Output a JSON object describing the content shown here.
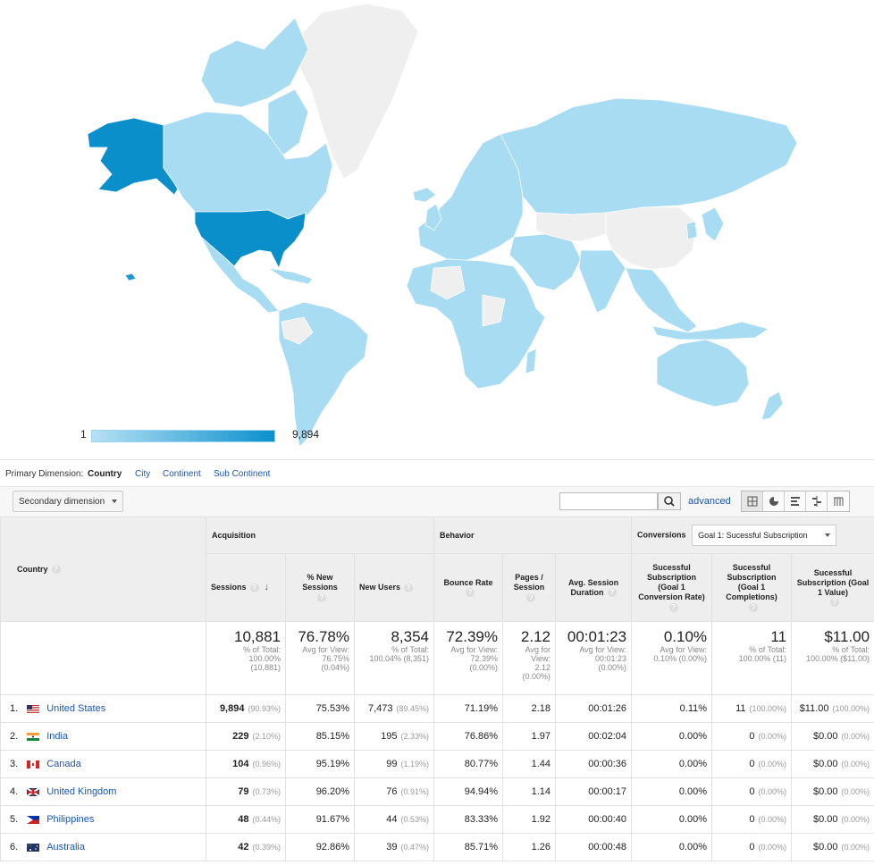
{
  "colors": {
    "light": "#a8dcf3",
    "dark": "#0b8fcb",
    "mid": "#1499d4",
    "noData": "#efefef",
    "link": "#1a56b0"
  },
  "legend": {
    "min": "1",
    "max": "9,894"
  },
  "primary_dimension": {
    "label": "Primary Dimension:",
    "options": [
      "Country",
      "City",
      "Continent",
      "Sub Continent"
    ],
    "active": "Country"
  },
  "toolbar": {
    "secondary_dimension": "Secondary dimension",
    "search_placeholder": "",
    "advanced": "advanced",
    "view_icons": [
      "table-view-icon",
      "pie-view-icon",
      "performance-view-icon",
      "comparison-view-icon",
      "pivot-view-icon"
    ]
  },
  "table": {
    "dimension_header": "Country",
    "groups": {
      "acquisition": "Acquisition",
      "behavior": "Behavior",
      "conversions": "Conversions",
      "goal_select": "Goal 1: Sucessful Subscription"
    },
    "columns": {
      "sessions": "Sessions",
      "pct_new_sessions": "% New Sessions",
      "new_users": "New Users",
      "bounce_rate": "Bounce Rate",
      "pages_session": "Pages / Session",
      "avg_duration": "Avg. Session Duration",
      "conv_rate": "Sucessful Subscription (Goal 1 Conversion Rate)",
      "completions": "Sucessful Subscription (Goal 1 Completions)",
      "value": "Sucessful Subscription (Goal 1 Value)"
    },
    "totals": {
      "sessions": {
        "value": "10,881",
        "sub": [
          "% of Total:",
          "100.00%",
          "(10,881)"
        ]
      },
      "pct_new_sessions": {
        "value": "76.78%",
        "sub": [
          "Avg for View:",
          "76.75%",
          "(0.04%)"
        ]
      },
      "new_users": {
        "value": "8,354",
        "sub": [
          "% of Total:",
          "100.04% (8,351)"
        ]
      },
      "bounce_rate": {
        "value": "72.39%",
        "sub": [
          "Avg for View:",
          "72.39%",
          "(0.00%)"
        ]
      },
      "pages_session": {
        "value": "2.12",
        "sub": [
          "Avg for",
          "View:",
          "2.12",
          "(0.00%)"
        ]
      },
      "avg_duration": {
        "value": "00:01:23",
        "sub": [
          "Avg for View:",
          "00:01:23",
          "(0.00%)"
        ]
      },
      "conv_rate": {
        "value": "0.10%",
        "sub": [
          "Avg for View:",
          "0.10% (0.00%)"
        ]
      },
      "completions": {
        "value": "11",
        "sub": [
          "% of Total:",
          "100.00% (11)"
        ]
      },
      "value": {
        "value": "$11.00",
        "sub": [
          "% of Total:",
          "100.00% ($11.00)"
        ]
      }
    },
    "rows": [
      {
        "rank": "1.",
        "flag": "us-flag-icon",
        "country": "United States",
        "sessions": "9,894",
        "sessions_pct": "(90.93%)",
        "pct_new": "75.53%",
        "new_users": "7,473",
        "new_users_pct": "(89.45%)",
        "bounce": "71.19%",
        "pages": "2.18",
        "duration": "00:01:26",
        "conv_rate": "0.11%",
        "completions": "11",
        "completions_pct": "(100.00%)",
        "value": "$11.00",
        "value_pct": "(100.00%)"
      },
      {
        "rank": "2.",
        "flag": "in-flag-icon",
        "country": "India",
        "sessions": "229",
        "sessions_pct": "(2.10%)",
        "pct_new": "85.15%",
        "new_users": "195",
        "new_users_pct": "(2.33%)",
        "bounce": "76.86%",
        "pages": "1.97",
        "duration": "00:02:04",
        "conv_rate": "0.00%",
        "completions": "0",
        "completions_pct": "(0.00%)",
        "value": "$0.00",
        "value_pct": "(0.00%)"
      },
      {
        "rank": "3.",
        "flag": "ca-flag-icon",
        "country": "Canada",
        "sessions": "104",
        "sessions_pct": "(0.96%)",
        "pct_new": "95.19%",
        "new_users": "99",
        "new_users_pct": "(1.19%)",
        "bounce": "80.77%",
        "pages": "1.44",
        "duration": "00:00:36",
        "conv_rate": "0.00%",
        "completions": "0",
        "completions_pct": "(0.00%)",
        "value": "$0.00",
        "value_pct": "(0.00%)"
      },
      {
        "rank": "4.",
        "flag": "uk-flag-icon",
        "country": "United Kingdom",
        "sessions": "79",
        "sessions_pct": "(0.73%)",
        "pct_new": "96.20%",
        "new_users": "76",
        "new_users_pct": "(0.91%)",
        "bounce": "94.94%",
        "pages": "1.14",
        "duration": "00:00:17",
        "conv_rate": "0.00%",
        "completions": "0",
        "completions_pct": "(0.00%)",
        "value": "$0.00",
        "value_pct": "(0.00%)"
      },
      {
        "rank": "5.",
        "flag": "ph-flag-icon",
        "country": "Philippines",
        "sessions": "48",
        "sessions_pct": "(0.44%)",
        "pct_new": "91.67%",
        "new_users": "44",
        "new_users_pct": "(0.53%)",
        "bounce": "83.33%",
        "pages": "1.92",
        "duration": "00:00:40",
        "conv_rate": "0.00%",
        "completions": "0",
        "completions_pct": "(0.00%)",
        "value": "$0.00",
        "value_pct": "(0.00%)"
      },
      {
        "rank": "6.",
        "flag": "au-flag-icon",
        "country": "Australia",
        "sessions": "42",
        "sessions_pct": "(0.39%)",
        "pct_new": "92.86%",
        "new_users": "39",
        "new_users_pct": "(0.47%)",
        "bounce": "85.71%",
        "pages": "1.26",
        "duration": "00:00:48",
        "conv_rate": "0.00%",
        "completions": "0",
        "completions_pct": "(0.00%)",
        "value": "$0.00",
        "value_pct": "(0.00%)"
      }
    ]
  }
}
